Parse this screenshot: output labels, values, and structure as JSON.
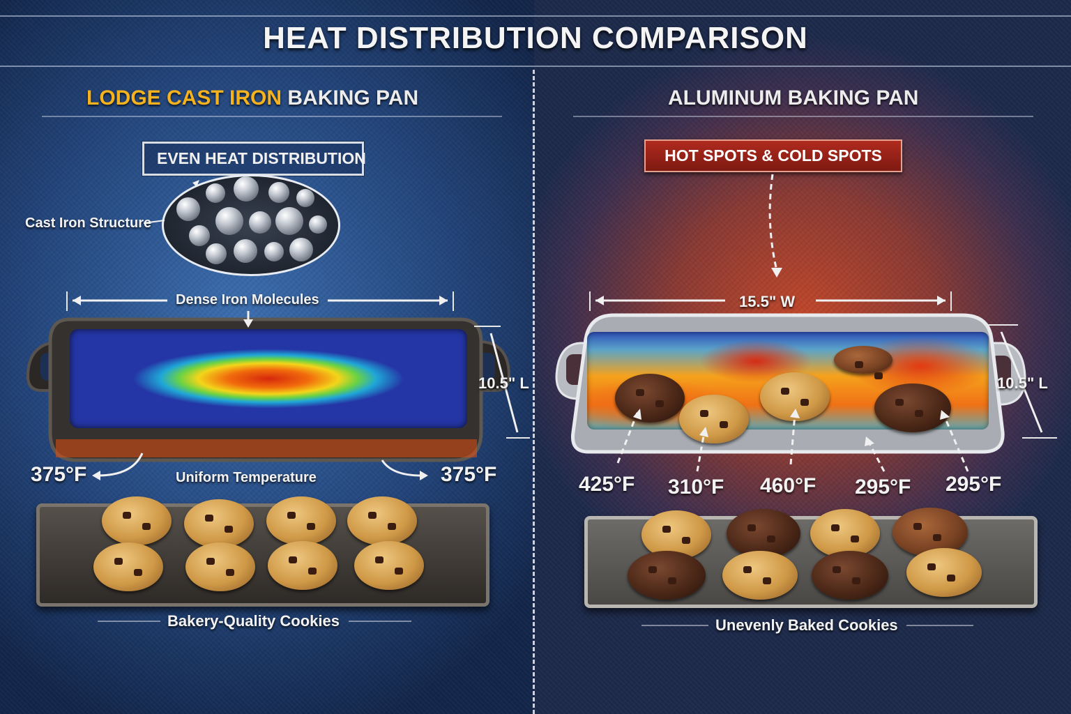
{
  "title": "HEAT DISTRIBUTION COMPARISON",
  "left": {
    "title_accent": "LODGE CAST IRON",
    "title_rest": "BAKING PAN",
    "badge": "EVEN HEAT DISTRIBUTION",
    "structure_label": "Cast Iron Structure",
    "width_label": "Dense Iron Molecules",
    "length_label": "10.5\" L",
    "temp_left": "375°F",
    "temp_right": "375°F",
    "temp_caption": "Uniform Temperature",
    "caption": "Bakery-Quality Cookies"
  },
  "right": {
    "title_accent": "ALUMINUM",
    "title_rest": "BAKING PAN",
    "badge": "HOT SPOTS & COLD SPOTS",
    "width_label": "15.5\" W",
    "length_label": "10.5\" L",
    "temps": [
      "425°F",
      "310°F",
      "460°F",
      "295°F",
      "295°F"
    ],
    "caption": "Unevenly Baked Cookies"
  },
  "colors": {
    "accent": "#f5b21f",
    "hot_badge": "#9c2218",
    "left_bg": "#24477e",
    "right_bg": "#8a3a34"
  }
}
